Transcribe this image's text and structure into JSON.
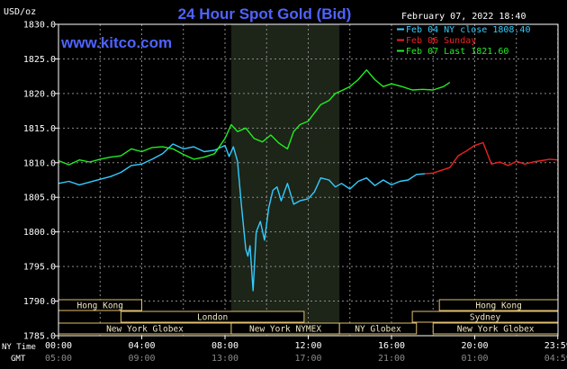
{
  "chart_data": {
    "type": "line",
    "title": "24 Hour Spot Gold (Bid)",
    "watermark": "www.kitco.com",
    "date_label": "February 07, 2022 18:40",
    "y_unit": "USD/oz",
    "ylim": [
      1785,
      1830
    ],
    "y_ticks": [
      "1830.0",
      "1825.0",
      "1820.0",
      "1815.0",
      "1810.0",
      "1805.0",
      "1800.0",
      "1795.0",
      "1790.0",
      "1785.0"
    ],
    "xlim_hours": [
      0,
      24
    ],
    "x_ticks_ny": [
      "00:00",
      "04:00",
      "08:00",
      "12:00",
      "16:00",
      "20:00",
      "23:59"
    ],
    "x_ticks_gmt": [
      "05:00",
      "09:00",
      "13:00",
      "17:00",
      "21:00",
      "01:00",
      "04:59"
    ],
    "row_label_ny": "NY Time",
    "row_label_gmt": "GMT",
    "grid": true,
    "legend_position": "top-right",
    "highlight_hours": [
      8.3,
      13.5
    ],
    "sessions": [
      {
        "label": "Hong Kong",
        "start": 0.0,
        "end": 4.0,
        "row": 0
      },
      {
        "label": "Hong Kong",
        "start": 18.3,
        "end": 24.0,
        "row": 0
      },
      {
        "label": "London",
        "start": 3.0,
        "end": 11.8,
        "row": 1
      },
      {
        "label": "Sydney",
        "start": 17.0,
        "end": 24.0,
        "row": 1
      },
      {
        "label": "New York Globex",
        "start": 0.0,
        "end": 8.3,
        "row": 2
      },
      {
        "label": "New York NYMEX",
        "start": 8.3,
        "end": 13.5,
        "row": 2
      },
      {
        "label": "NY Globex",
        "start": 13.5,
        "end": 17.2,
        "row": 2
      },
      {
        "label": "New York Globex",
        "start": 18.0,
        "end": 24.0,
        "row": 2
      }
    ],
    "series": [
      {
        "name": "Feb 04 NY close 1808.40",
        "color": "#33ccff",
        "x": [
          0,
          0.5,
          1,
          1.5,
          2,
          2.5,
          3,
          3.5,
          4,
          4.5,
          5,
          5.5,
          6,
          6.5,
          7,
          7.5,
          8,
          8.2,
          8.4,
          8.6,
          8.8,
          9,
          9.1,
          9.2,
          9.35,
          9.5,
          9.7,
          9.9,
          10.1,
          10.3,
          10.5,
          10.7,
          11,
          11.3,
          11.6,
          12,
          12.3,
          12.6,
          13,
          13.3,
          13.6,
          14,
          14.4,
          14.8,
          15.2,
          15.6,
          16,
          16.4,
          16.8,
          17.2,
          17.6
        ],
        "values": [
          1807.0,
          1807.3,
          1806.8,
          1807.2,
          1807.6,
          1808.0,
          1808.6,
          1809.6,
          1809.8,
          1810.5,
          1811.3,
          1812.7,
          1812.0,
          1812.3,
          1811.6,
          1811.8,
          1812.5,
          1810.9,
          1812.3,
          1810.2,
          1803.5,
          1797.5,
          1796.5,
          1798.0,
          1791.5,
          1800.0,
          1801.5,
          1798.8,
          1803.5,
          1806.0,
          1806.5,
          1804.5,
          1807.0,
          1804.0,
          1804.5,
          1804.8,
          1805.8,
          1807.8,
          1807.5,
          1806.5,
          1807.0,
          1806.2,
          1807.3,
          1807.8,
          1806.7,
          1807.5,
          1806.8,
          1807.3,
          1807.5,
          1808.3,
          1808.4
        ]
      },
      {
        "name": "Feb 06 Sunday",
        "color": "#ee2222",
        "x": [
          17.6,
          18.0,
          18.4,
          18.8,
          19.2,
          19.6,
          20.0,
          20.4,
          20.8,
          21.2,
          21.6,
          22.0,
          22.4,
          22.8,
          23.2,
          23.6,
          23.99
        ],
        "values": [
          1808.4,
          1808.5,
          1808.9,
          1809.3,
          1811.0,
          1811.7,
          1812.5,
          1812.9,
          1809.8,
          1810.1,
          1809.6,
          1810.2,
          1809.8,
          1810.1,
          1810.3,
          1810.5,
          1810.4
        ]
      },
      {
        "name": "Feb 07 Last 1821.60",
        "color": "#22ee22",
        "x": [
          0,
          0.5,
          1,
          1.5,
          2,
          2.5,
          3,
          3.5,
          4,
          4.5,
          5,
          5.5,
          6,
          6.5,
          7,
          7.5,
          8,
          8.3,
          8.6,
          9,
          9.4,
          9.8,
          10.2,
          10.6,
          11,
          11.3,
          11.6,
          12,
          12.3,
          12.6,
          13,
          13.3,
          13.6,
          14,
          14.4,
          14.8,
          15.2,
          15.6,
          16,
          16.5,
          17,
          17.5,
          18,
          18.5,
          18.8
        ],
        "values": [
          1810.3,
          1809.7,
          1810.4,
          1810.1,
          1810.5,
          1810.8,
          1811.0,
          1812.0,
          1811.6,
          1812.2,
          1812.3,
          1812.0,
          1811.2,
          1810.5,
          1810.8,
          1811.3,
          1813.5,
          1815.5,
          1814.5,
          1815.0,
          1813.5,
          1813.0,
          1814.0,
          1812.8,
          1812.0,
          1814.5,
          1815.5,
          1816.0,
          1817.2,
          1818.4,
          1819.0,
          1820.0,
          1820.4,
          1821.0,
          1822.0,
          1823.4,
          1822.0,
          1821.0,
          1821.4,
          1821.0,
          1820.5,
          1820.6,
          1820.5,
          1821.0,
          1821.6
        ]
      }
    ]
  }
}
